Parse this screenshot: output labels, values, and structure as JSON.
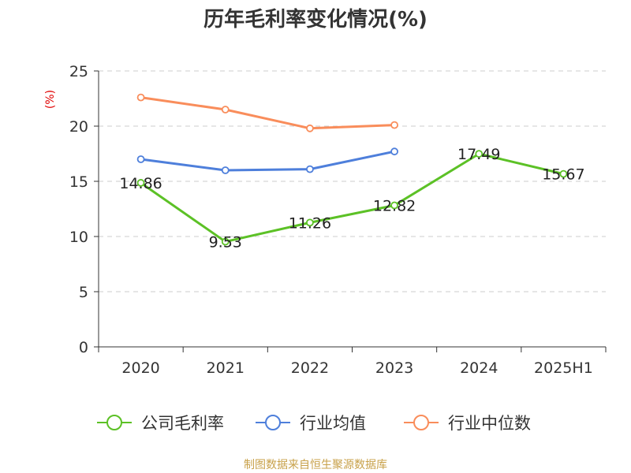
{
  "chart_data": {
    "type": "line",
    "title": "历年毛利率变化情况(%)",
    "ylabel": "(%)",
    "xlabel": "",
    "categories": [
      "2020",
      "2021",
      "2022",
      "2023",
      "2024",
      "2025H1"
    ],
    "ylim": [
      0,
      25
    ],
    "yticks": [
      "0",
      "5",
      "10",
      "15",
      "20",
      "25"
    ],
    "grid": true,
    "legend_position": "bottom",
    "series": [
      {
        "name": "公司毛利率",
        "color": "#5cc126",
        "values": [
          14.86,
          9.53,
          11.26,
          12.82,
          17.49,
          15.67
        ],
        "labels": [
          "14.86",
          "9.53",
          "11.26",
          "12.82",
          "17.49",
          "15.67"
        ]
      },
      {
        "name": "行业均值",
        "color": "#4e7fdb",
        "values": [
          17.0,
          16.0,
          16.1,
          17.7,
          null,
          null
        ]
      },
      {
        "name": "行业中位数",
        "color": "#f98d5b",
        "values": [
          22.6,
          21.5,
          19.8,
          20.1,
          null,
          null
        ]
      }
    ]
  },
  "footer": {
    "source": "制图数据来自恒生聚源数据库"
  }
}
